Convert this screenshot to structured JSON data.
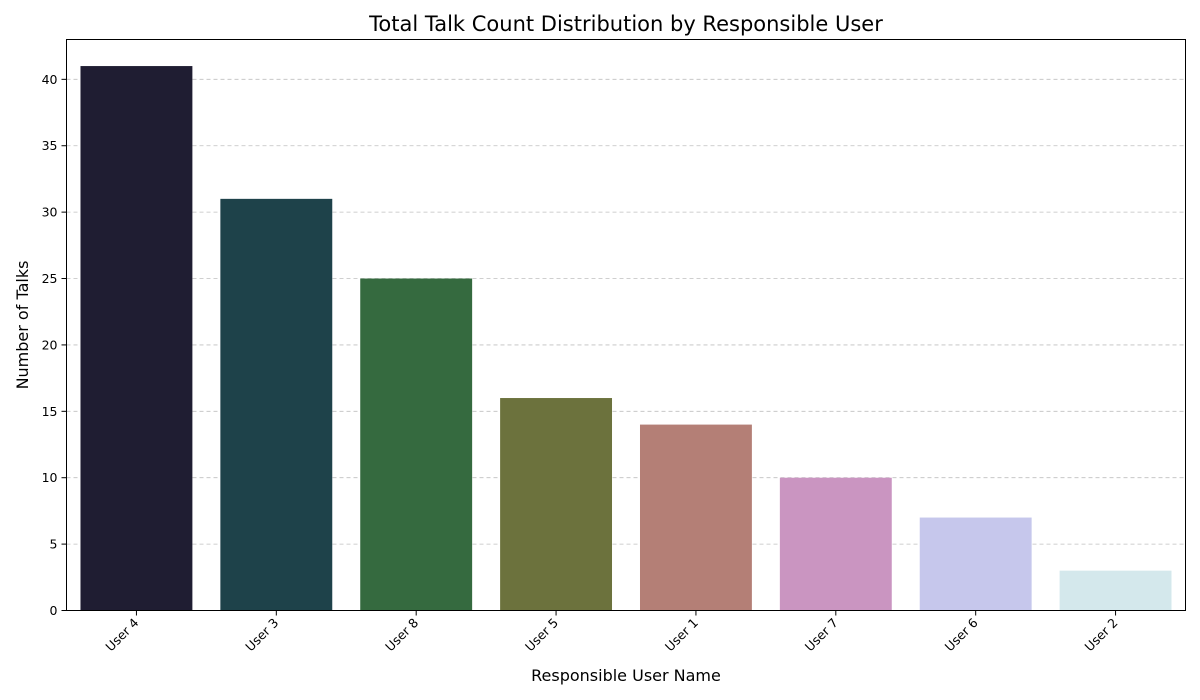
{
  "chart_data": {
    "type": "bar",
    "title": "Total Talk Count Distribution by Responsible User",
    "xlabel": "Responsible User Name",
    "ylabel": "Number of Talks",
    "categories": [
      "User 4",
      "User 3",
      "User 8",
      "User 5",
      "User 1",
      "User 7",
      "User 6",
      "User 2"
    ],
    "values": [
      41,
      31,
      25,
      16,
      14,
      10,
      7,
      3
    ],
    "colors": [
      "#1f1d32",
      "#1e424a",
      "#356a3f",
      "#6c723d",
      "#b47f76",
      "#ca95c1",
      "#c6c7ec",
      "#d4e8ec"
    ],
    "ylim": [
      0,
      43
    ],
    "yticks": [
      0,
      5,
      10,
      15,
      20,
      25,
      30,
      35,
      40
    ],
    "grid": "y-dashed",
    "legend": "none"
  }
}
